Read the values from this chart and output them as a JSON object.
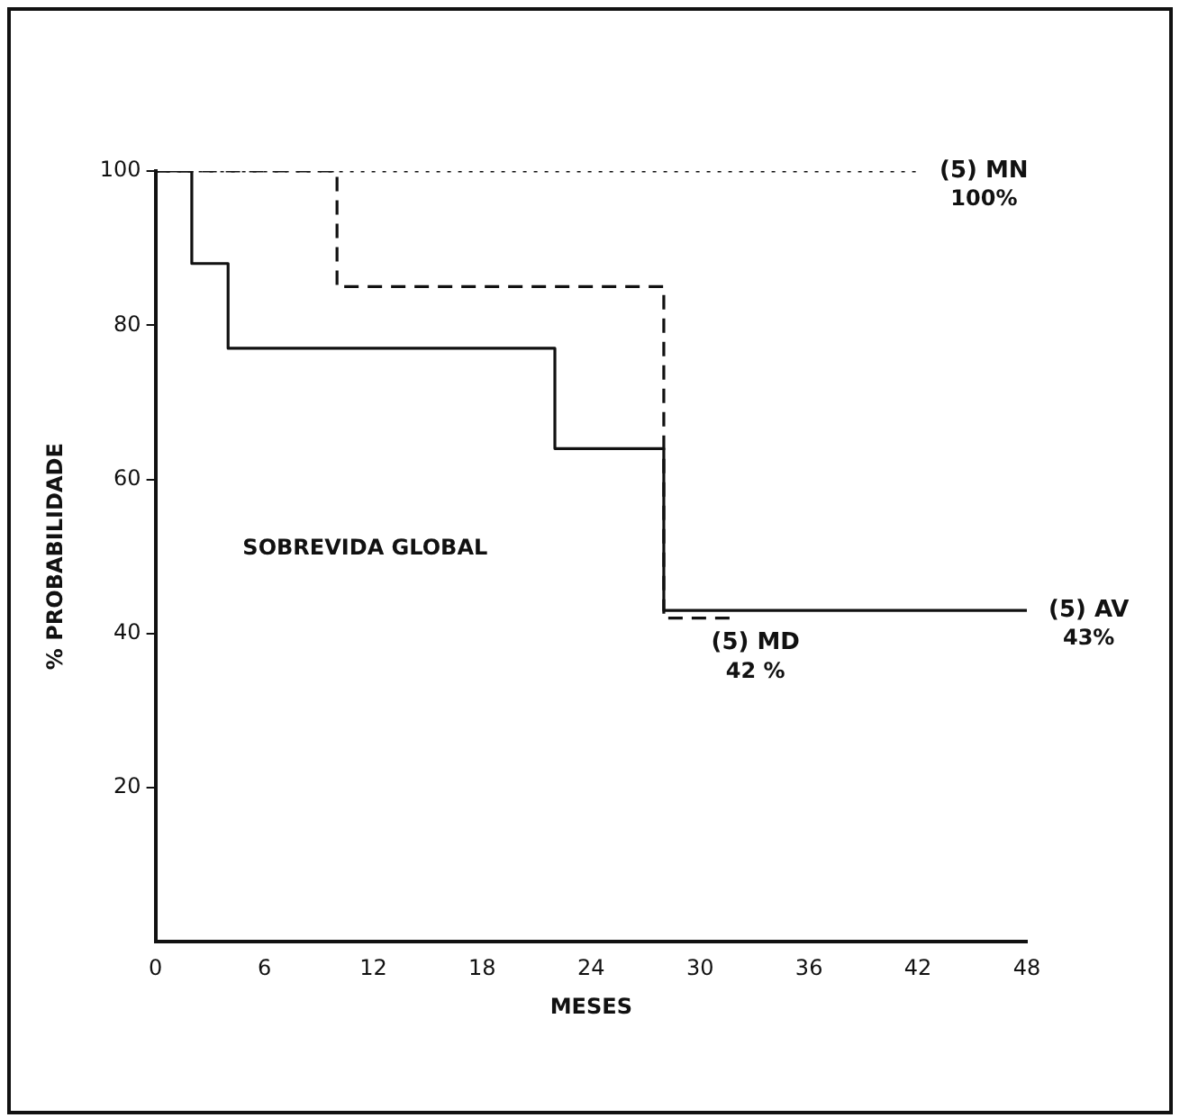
{
  "chart_data": {
    "type": "step",
    "xlabel": "MESES",
    "ylabel": "% PROBABILIDADE",
    "annotations": [
      "SOBREVIDA GLOBAL",
      {
        "text": "100%",
        "x": 42,
        "y": 100
      },
      {
        "text": "43%",
        "x": 48,
        "y": 43
      },
      {
        "text": "42 %",
        "x": 32,
        "y": 42
      }
    ],
    "series": [
      {
        "name": "(5) MN",
        "color": "#111111",
        "line_style": "dotted",
        "x": [
          0,
          42
        ],
        "values": [
          100,
          100
        ]
      },
      {
        "name": "(5) AV",
        "color": "#111111",
        "line_style": "solid",
        "x": [
          0,
          2,
          4,
          22,
          28,
          48
        ],
        "values": [
          100,
          88,
          77,
          64,
          43,
          43
        ]
      },
      {
        "name": "(5) MD",
        "color": "#111111",
        "line_style": "dashed",
        "x": [
          0,
          10,
          28,
          32
        ],
        "values": [
          100,
          85,
          42,
          42
        ]
      }
    ],
    "xlim": [
      0,
      48
    ],
    "xticks": [
      0,
      6,
      12,
      18,
      24,
      30,
      36,
      42,
      48
    ],
    "ylim": [
      0,
      100
    ],
    "yticks": [
      20,
      40,
      60,
      80,
      100
    ],
    "grid": false,
    "legend": false,
    "marker": "none"
  }
}
